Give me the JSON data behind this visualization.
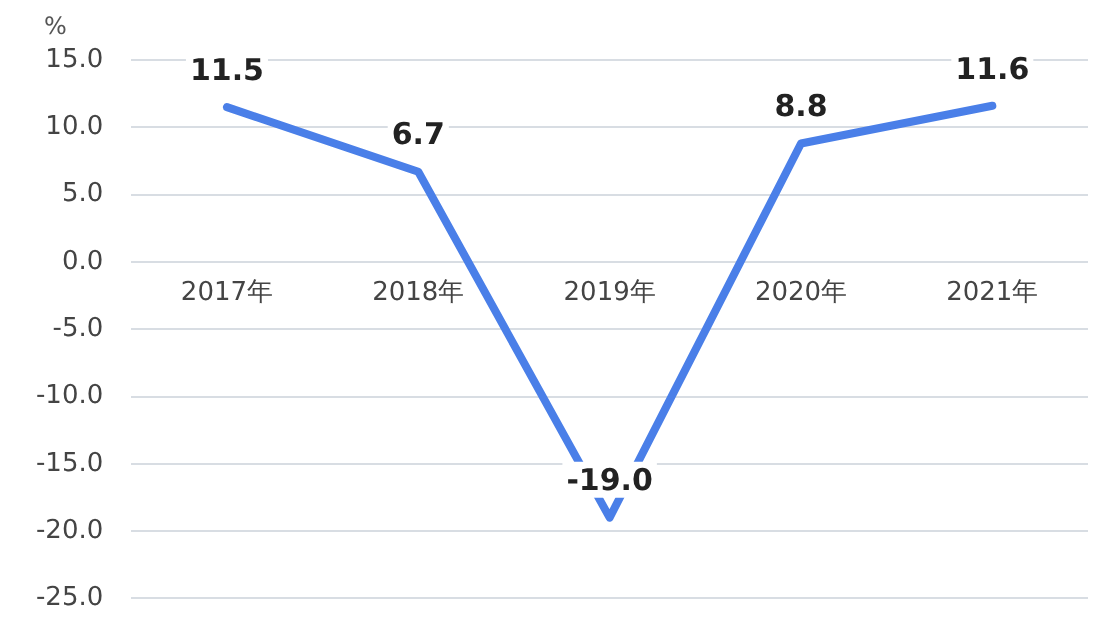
{
  "chart_data": {
    "type": "line",
    "ylabel": "%",
    "categories": [
      "2017年",
      "2018年",
      "2019年",
      "2020年",
      "2021年"
    ],
    "series": [
      {
        "color": "#4a7fe8",
        "values": [
          11.5,
          6.7,
          -19.0,
          8.8,
          11.6
        ]
      }
    ],
    "value_labels": [
      "11.5",
      "6.7",
      "-19.0",
      "8.8",
      "11.6"
    ],
    "ylim": [
      -25,
      15
    ],
    "yticks": [
      {
        "value": -25,
        "label": "-25.0"
      },
      {
        "value": -20,
        "label": "-20.0"
      },
      {
        "value": -15,
        "label": "-15.0"
      },
      {
        "value": -10,
        "label": "-10.0"
      },
      {
        "value": -5,
        "label": "-5.0"
      },
      {
        "value": 0,
        "label": "0.0"
      },
      {
        "value": 5,
        "label": "5.0"
      },
      {
        "value": 10,
        "label": "10.0"
      },
      {
        "value": 15,
        "label": "15.0"
      }
    ],
    "grid": "y",
    "legend": false,
    "marker": "none",
    "line_style": "solid"
  }
}
